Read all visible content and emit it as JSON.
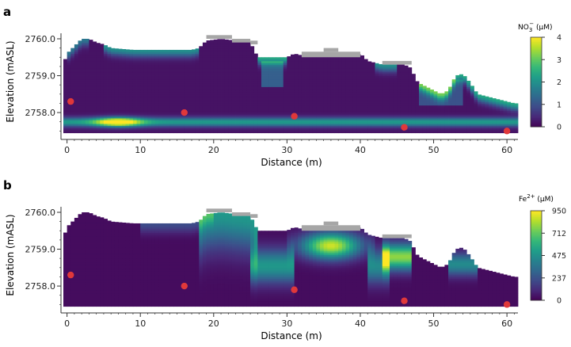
{
  "chart_data": [
    {
      "type": "heatmap",
      "panel_label": "a",
      "xlabel": "Distance (m)",
      "ylabel": "Elevation (mASL)",
      "xlim": [
        -0.5,
        61.5
      ],
      "ylim": [
        2757.4,
        2760.15
      ],
      "x_ticks": [
        0,
        10,
        20,
        30,
        40,
        50,
        60
      ],
      "y_ticks": [
        2758.0,
        2759.0,
        2760.0
      ],
      "y_tick_labels": [
        "2758.0",
        "2759.0",
        "2760.0"
      ],
      "colorbar": {
        "label_main": "NO",
        "label_sub": "3",
        "label_sup": "−",
        "label_unit": " (µM)",
        "min": 0,
        "max": 4,
        "ticks": [
          0,
          1,
          2,
          3,
          4
        ],
        "tick_labels": [
          "0",
          "1",
          "2",
          "3",
          "4"
        ],
        "colormap": "viridis"
      },
      "sample_points": [
        {
          "x": 0.5,
          "y": 2758.3
        },
        {
          "x": 16,
          "y": 2758.0
        },
        {
          "x": 31,
          "y": 2757.9
        },
        {
          "x": 46,
          "y": 2757.6
        },
        {
          "x": 60,
          "y": 2757.5
        }
      ],
      "no_data_color": "#a6a6a6",
      "point_color": "#e0383a"
    },
    {
      "type": "heatmap",
      "panel_label": "b",
      "xlabel": "Distance (m)",
      "ylabel": "Elevation (mASL)",
      "xlim": [
        -0.5,
        61.5
      ],
      "ylim": [
        2757.4,
        2760.15
      ],
      "x_ticks": [
        0,
        10,
        20,
        30,
        40,
        50,
        60
      ],
      "y_ticks": [
        2758.0,
        2759.0,
        2760.0
      ],
      "y_tick_labels": [
        "2758.0",
        "2759.0",
        "2760.0"
      ],
      "colorbar": {
        "label_main": "Fe",
        "label_sup": "2+",
        "label_unit": " (µM)",
        "min": 0,
        "max": 950,
        "ticks": [
          0,
          237,
          475,
          712,
          950
        ],
        "tick_labels": [
          "0",
          "237",
          "475",
          "712",
          "950"
        ],
        "colormap": "viridis"
      },
      "sample_points": [
        {
          "x": 0.5,
          "y": 2758.3
        },
        {
          "x": 16,
          "y": 2758.0
        },
        {
          "x": 31,
          "y": 2757.9
        },
        {
          "x": 46,
          "y": 2757.6
        },
        {
          "x": 60,
          "y": 2757.5
        }
      ],
      "no_data_color": "#a6a6a6",
      "point_color": "#e0383a"
    }
  ]
}
